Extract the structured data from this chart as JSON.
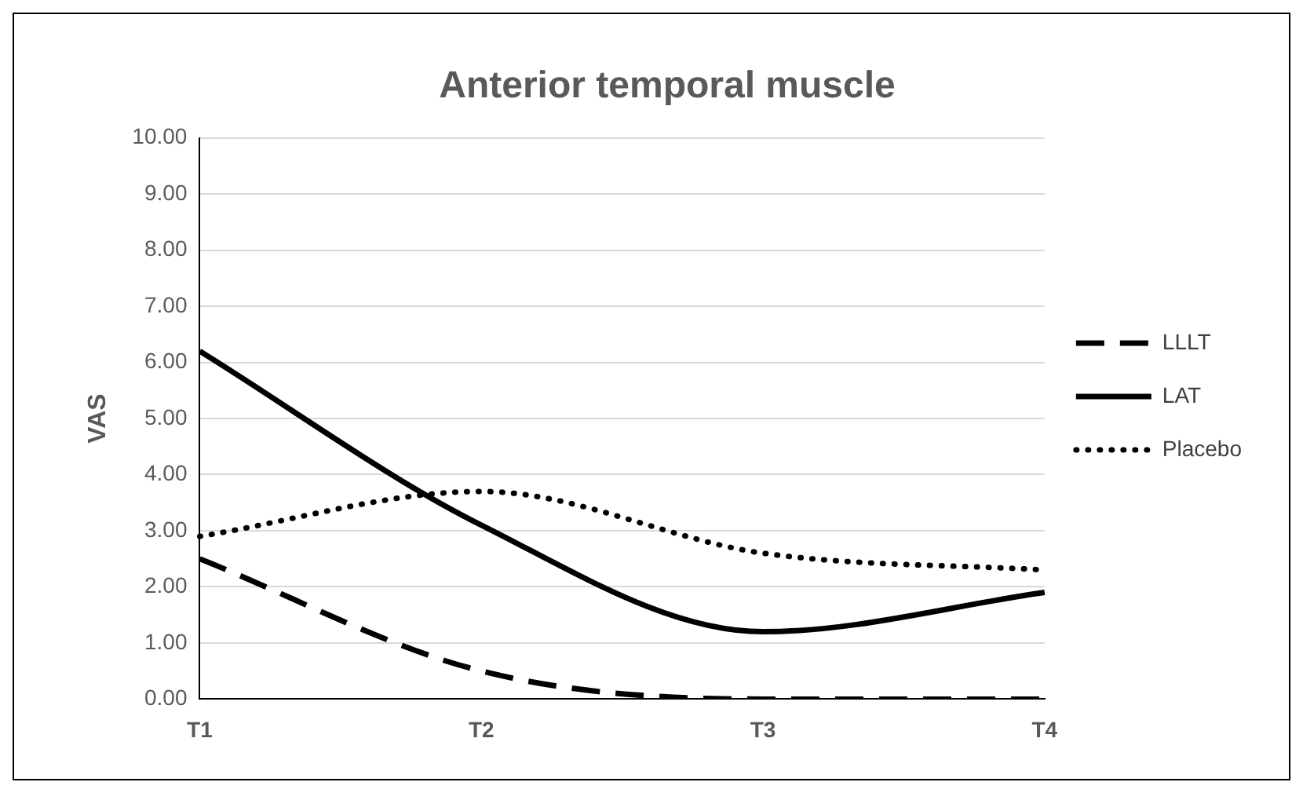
{
  "chart_data": {
    "type": "line",
    "title": "Anterior temporal muscle",
    "ylabel": "VAS",
    "categories": [
      "T1",
      "T2",
      "T3",
      "T4"
    ],
    "series": [
      {
        "name": "LLLT",
        "color": "#000000",
        "line_style": "dashed",
        "values": [
          2.5,
          0.5,
          0.0,
          0.0
        ]
      },
      {
        "name": "LAT",
        "color": "#000000",
        "line_style": "solid",
        "values": [
          6.2,
          3.1,
          1.2,
          1.9
        ]
      },
      {
        "name": "Placebo",
        "color": "#000000",
        "line_style": "dotted",
        "values": [
          2.9,
          3.7,
          2.6,
          2.3
        ]
      }
    ],
    "ylim": [
      0,
      10
    ],
    "yticks": [
      {
        "value": 0,
        "label": "0.00"
      },
      {
        "value": 1,
        "label": "1.00"
      },
      {
        "value": 2,
        "label": "2.00"
      },
      {
        "value": 3,
        "label": "3.00"
      },
      {
        "value": 4,
        "label": "4.00"
      },
      {
        "value": 5,
        "label": "5.00"
      },
      {
        "value": 6,
        "label": "6.00"
      },
      {
        "value": 7,
        "label": "7.00"
      },
      {
        "value": 8,
        "label": "8.00"
      },
      {
        "value": 9,
        "label": "9.00"
      },
      {
        "value": 10,
        "label": "10.00"
      }
    ],
    "grid": "y",
    "legend": "right",
    "marker": "none"
  }
}
